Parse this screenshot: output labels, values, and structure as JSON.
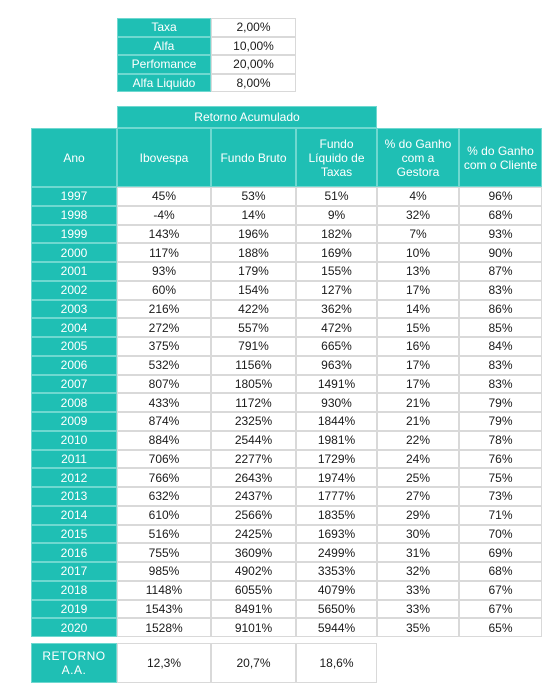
{
  "params": [
    {
      "label": "Taxa",
      "value": "2,00%"
    },
    {
      "label": "Alfa",
      "value": "10,00%"
    },
    {
      "label": "Perfomance",
      "value": "20,00%"
    },
    {
      "label": "Alfa Liquido",
      "value": "8,00%"
    }
  ],
  "group_header": "Retorno Acumulado",
  "headers": [
    "Ano",
    "Ibovespa",
    "Fundo Bruto",
    "Fundo Líquido de Taxas",
    "% do Ganho com a Gestora",
    "% do Ganho com o Cliente"
  ],
  "rows": [
    [
      "1997",
      "45%",
      "53%",
      "51%",
      "4%",
      "96%"
    ],
    [
      "1998",
      "-4%",
      "14%",
      "9%",
      "32%",
      "68%"
    ],
    [
      "1999",
      "143%",
      "196%",
      "182%",
      "7%",
      "93%"
    ],
    [
      "2000",
      "117%",
      "188%",
      "169%",
      "10%",
      "90%"
    ],
    [
      "2001",
      "93%",
      "179%",
      "155%",
      "13%",
      "87%"
    ],
    [
      "2002",
      "60%",
      "154%",
      "127%",
      "17%",
      "83%"
    ],
    [
      "2003",
      "216%",
      "422%",
      "362%",
      "14%",
      "86%"
    ],
    [
      "2004",
      "272%",
      "557%",
      "472%",
      "15%",
      "85%"
    ],
    [
      "2005",
      "375%",
      "791%",
      "665%",
      "16%",
      "84%"
    ],
    [
      "2006",
      "532%",
      "1156%",
      "963%",
      "17%",
      "83%"
    ],
    [
      "2007",
      "807%",
      "1805%",
      "1491%",
      "17%",
      "83%"
    ],
    [
      "2008",
      "433%",
      "1172%",
      "930%",
      "21%",
      "79%"
    ],
    [
      "2009",
      "874%",
      "2325%",
      "1844%",
      "21%",
      "79%"
    ],
    [
      "2010",
      "884%",
      "2544%",
      "1981%",
      "22%",
      "78%"
    ],
    [
      "2011",
      "706%",
      "2277%",
      "1729%",
      "24%",
      "76%"
    ],
    [
      "2012",
      "766%",
      "2643%",
      "1974%",
      "25%",
      "75%"
    ],
    [
      "2013",
      "632%",
      "2437%",
      "1777%",
      "27%",
      "73%"
    ],
    [
      "2014",
      "610%",
      "2566%",
      "1835%",
      "29%",
      "71%"
    ],
    [
      "2015",
      "516%",
      "2425%",
      "1693%",
      "30%",
      "70%"
    ],
    [
      "2016",
      "755%",
      "3609%",
      "2499%",
      "31%",
      "69%"
    ],
    [
      "2017",
      "985%",
      "4902%",
      "3353%",
      "32%",
      "68%"
    ],
    [
      "2018",
      "1148%",
      "6055%",
      "4079%",
      "33%",
      "67%"
    ],
    [
      "2019",
      "1543%",
      "8491%",
      "5650%",
      "33%",
      "67%"
    ],
    [
      "2020",
      "1528%",
      "9101%",
      "5944%",
      "35%",
      "65%"
    ]
  ],
  "footer": {
    "label": "RETORNO A.A.",
    "values": [
      "12,3%",
      "20,7%",
      "18,6%"
    ]
  },
  "colors": {
    "teal": "#1fbfb4",
    "cell_border": "#d9d9d9",
    "text": "#1a1a1a"
  }
}
